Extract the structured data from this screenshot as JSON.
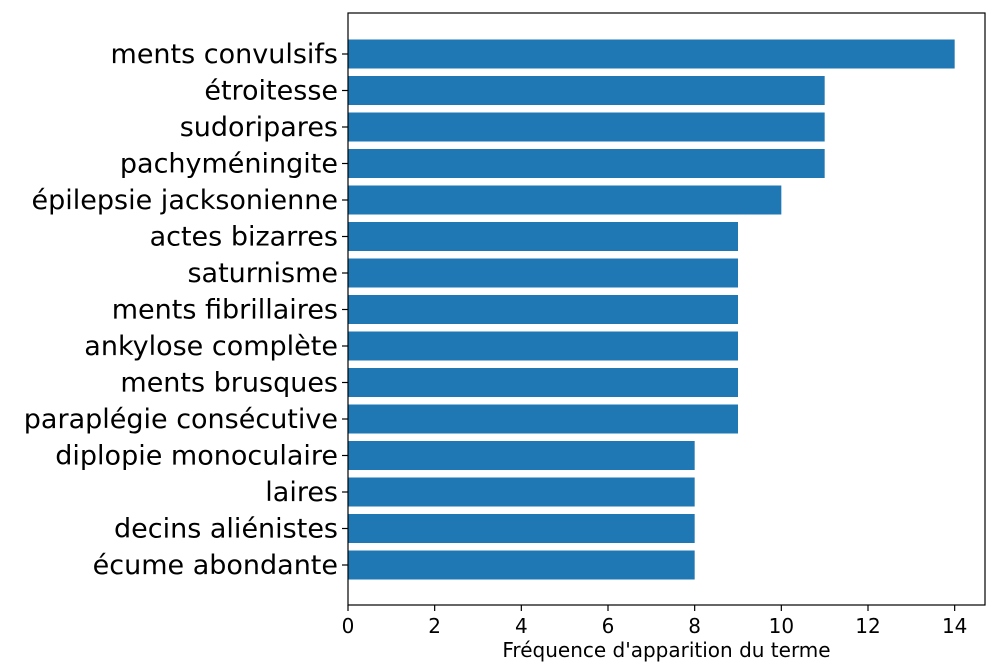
{
  "chart_data": {
    "type": "bar",
    "orientation": "horizontal",
    "categories": [
      "ments convulsifs",
      "étroitesse",
      "sudoripares",
      "pachyméningite",
      "épilepsie jacksonienne",
      "actes bizarres",
      "saturnisme",
      "ments fibrillaires",
      "ankylose complète",
      "ments brusques",
      "paraplégie consécutive",
      "diplopie monoculaire",
      "laires",
      "decins aliénistes",
      "écume abondante"
    ],
    "values": [
      14,
      11,
      11,
      11,
      10,
      9,
      9,
      9,
      9,
      9,
      9,
      8,
      8,
      8,
      8
    ],
    "xlabel": "Fréquence d'apparition du terme",
    "ylabel": "",
    "title": "",
    "xlim": [
      0,
      14.7
    ],
    "xticks": [
      "0",
      "2",
      "4",
      "6",
      "8",
      "10",
      "12",
      "14"
    ],
    "grid": false,
    "bar_color": "#1f77b4"
  }
}
